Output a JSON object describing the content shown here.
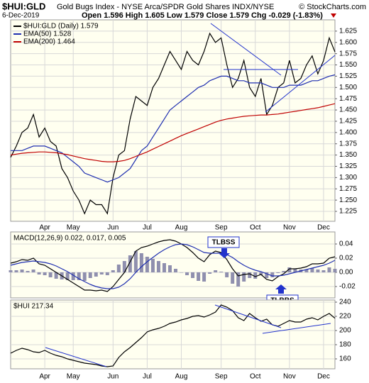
{
  "header": {
    "symbol": "$HUI:GLD",
    "name": "Gold Bugs Index - NYSE Arca/SPDR Gold Shares INDX/NYSE",
    "copyright": "© StockCharts.com",
    "date": "6-Dec-2019",
    "quote": "Open 1.596  High 1.605  Low 1.579  Close 1.579  Chg -0.029 (-1.83%)"
  },
  "chart_data": [
    {
      "type": "line",
      "categories": [
        null,
        null,
        null,
        null,
        null,
        null,
        "Apr",
        null,
        null,
        null,
        null,
        "May",
        null,
        null,
        null,
        null,
        null,
        null,
        "Jun",
        null,
        null,
        null,
        null,
        null,
        "Jul",
        null,
        null,
        null,
        null,
        null,
        "Aug",
        null,
        null,
        null,
        null,
        null,
        null,
        "Sep",
        null,
        null,
        null,
        null,
        null,
        "Oct",
        null,
        null,
        null,
        null,
        null,
        "Nov",
        null,
        null,
        null,
        null,
        null,
        "Dec",
        null,
        null
      ],
      "series": [
        {
          "name": "$HUI:GLD (Daily) 1.579",
          "color": "#000000",
          "values": [
            1.345,
            1.37,
            1.4,
            1.41,
            1.44,
            1.39,
            1.41,
            1.38,
            1.37,
            1.32,
            1.3,
            1.27,
            1.25,
            1.22,
            1.25,
            1.24,
            1.24,
            1.22,
            1.3,
            1.35,
            1.36,
            1.43,
            1.48,
            1.47,
            1.46,
            1.5,
            1.52,
            1.55,
            1.58,
            1.56,
            1.54,
            1.58,
            1.56,
            1.55,
            1.58,
            1.62,
            1.6,
            1.61,
            1.55,
            1.5,
            1.52,
            1.56,
            1.5,
            1.48,
            1.52,
            1.44,
            1.46,
            1.5,
            1.51,
            1.56,
            1.51,
            1.52,
            1.55,
            1.57,
            1.53,
            1.56,
            1.61,
            1.579
          ]
        },
        {
          "name": "EMA(50) 1.528",
          "color": "#1f2fb0",
          "values": [
            1.36,
            1.36,
            1.36,
            1.365,
            1.37,
            1.37,
            1.37,
            1.365,
            1.36,
            1.355,
            1.345,
            1.335,
            1.325,
            1.31,
            1.305,
            1.3,
            1.295,
            1.29,
            1.295,
            1.3,
            1.31,
            1.32,
            1.34,
            1.36,
            1.37,
            1.39,
            1.41,
            1.43,
            1.45,
            1.46,
            1.47,
            1.48,
            1.49,
            1.5,
            1.505,
            1.515,
            1.52,
            1.525,
            1.525,
            1.52,
            1.515,
            1.515,
            1.51,
            1.51,
            1.51,
            1.505,
            1.5,
            1.5,
            1.5,
            1.505,
            1.505,
            1.505,
            1.51,
            1.515,
            1.515,
            1.52,
            1.525,
            1.528
          ]
        },
        {
          "name": "EMA(200) 1.464",
          "color": "#c00000",
          "values": [
            1.35,
            1.352,
            1.354,
            1.355,
            1.356,
            1.357,
            1.357,
            1.356,
            1.355,
            1.353,
            1.351,
            1.348,
            1.345,
            1.342,
            1.34,
            1.338,
            1.336,
            1.335,
            1.335,
            1.336,
            1.338,
            1.342,
            1.347,
            1.352,
            1.357,
            1.363,
            1.369,
            1.375,
            1.381,
            1.387,
            1.393,
            1.398,
            1.403,
            1.408,
            1.413,
            1.418,
            1.423,
            1.427,
            1.43,
            1.432,
            1.434,
            1.436,
            1.437,
            1.438,
            1.439,
            1.439,
            1.44,
            1.441,
            1.443,
            1.445,
            1.447,
            1.449,
            1.451,
            1.453,
            1.455,
            1.458,
            1.461,
            1.464
          ]
        }
      ],
      "ylim": [
        1.203,
        1.65
      ],
      "yticks": [
        1.225,
        {
          "value": 1.25,
          "label": "1.250"
        },
        1.275,
        {
          "value": 1.3,
          "label": "1.300"
        },
        1.325,
        {
          "value": 1.35,
          "label": "1.350"
        },
        1.375,
        {
          "value": 1.4,
          "label": "1.400"
        },
        1.425,
        {
          "value": 1.45,
          "label": "1.450"
        },
        1.475,
        {
          "value": 1.5,
          "label": "1.500"
        },
        1.525,
        {
          "value": 1.55,
          "label": "1.550"
        },
        1.575,
        {
          "value": 1.6,
          "label": "1.600"
        },
        1.625
      ],
      "grid": true
    },
    {
      "type": "line",
      "label": "MACD(12,26,9) 0.022, 0.017, 0.005",
      "categories": [
        null,
        null,
        null,
        null,
        null,
        null,
        null,
        null,
        null,
        null,
        null,
        null,
        null,
        null,
        null,
        null,
        null,
        null,
        null,
        null,
        null,
        null,
        null,
        null,
        null,
        null,
        null,
        null,
        null,
        null,
        null,
        null,
        null,
        null,
        null,
        null,
        null,
        null,
        null,
        null,
        null,
        null,
        null,
        null,
        null,
        null,
        null,
        null,
        null,
        null,
        null,
        null,
        null,
        null,
        null,
        null,
        null,
        null
      ],
      "series": [
        {
          "type": "bar",
          "color": "#8f8fae",
          "values": [
            0.003,
            0.003,
            0.004,
            0.002,
            0.004,
            -0.003,
            -0.004,
            -0.007,
            -0.009,
            -0.01,
            -0.011,
            -0.011,
            -0.011,
            -0.012,
            -0.008,
            -0.006,
            -0.003,
            -0.004,
            0.003,
            0.011,
            0.016,
            0.024,
            0.03,
            0.027,
            0.022,
            0.019,
            0.016,
            0.013,
            0.01,
            0.005,
            0.0,
            -0.004,
            -0.008,
            -0.012,
            -0.013,
            -0.002,
            0.003,
            0.001,
            -0.007,
            -0.016,
            -0.02,
            -0.013,
            -0.008,
            -0.009,
            -0.004,
            -0.008,
            -0.007,
            -0.001,
            0.002,
            0.007,
            0.005,
            0.004,
            0.004,
            0.006,
            0.004,
            0.003,
            0.007,
            0.005
          ]
        },
        {
          "color": "#000000",
          "values": [
            0.013,
            0.015,
            0.018,
            0.017,
            0.02,
            0.012,
            0.01,
            0.005,
            0.0,
            -0.005,
            -0.01,
            -0.015,
            -0.02,
            -0.025,
            -0.025,
            -0.026,
            -0.025,
            -0.027,
            -0.02,
            -0.01,
            0.0,
            0.015,
            0.03,
            0.035,
            0.037,
            0.04,
            0.043,
            0.045,
            0.046,
            0.044,
            0.04,
            0.035,
            0.028,
            0.02,
            0.015,
            0.025,
            0.03,
            0.028,
            0.018,
            0.005,
            -0.005,
            -0.003,
            -0.002,
            -0.006,
            -0.003,
            -0.01,
            -0.012,
            -0.006,
            -0.002,
            0.005,
            0.005,
            0.006,
            0.008,
            0.012,
            0.012,
            0.013,
            0.02,
            0.022
          ]
        },
        {
          "color": "#1f2fb0",
          "values": [
            0.01,
            0.012,
            0.014,
            0.015,
            0.016,
            0.015,
            0.014,
            0.012,
            0.009,
            0.005,
            0.001,
            -0.004,
            -0.009,
            -0.013,
            -0.017,
            -0.02,
            -0.022,
            -0.023,
            -0.023,
            -0.021,
            -0.016,
            -0.009,
            0.0,
            0.008,
            0.015,
            0.021,
            0.027,
            0.032,
            0.036,
            0.039,
            0.04,
            0.039,
            0.036,
            0.032,
            0.028,
            0.027,
            0.027,
            0.027,
            0.025,
            0.021,
            0.015,
            0.01,
            0.006,
            0.003,
            0.001,
            -0.002,
            -0.005,
            -0.005,
            -0.004,
            -0.002,
            0.0,
            0.002,
            0.004,
            0.006,
            0.008,
            0.01,
            0.013,
            0.017
          ]
        }
      ],
      "ylim": [
        -0.036,
        0.057
      ],
      "yticks": [
        -0.02,
        {
          "value": 0,
          "label": "0.00"
        },
        0.02,
        0.04
      ],
      "grid": true,
      "annotations": [
        {
          "text": "TLBSS"
        },
        {
          "text": "TLBBS"
        }
      ]
    },
    {
      "type": "line",
      "label": "$HUI 217.34",
      "categories": [
        null,
        null,
        null,
        null,
        null,
        null,
        "Apr",
        null,
        null,
        null,
        null,
        "May",
        null,
        null,
        null,
        null,
        null,
        null,
        "Jun",
        null,
        null,
        null,
        null,
        null,
        "Jul",
        null,
        null,
        null,
        null,
        null,
        "Aug",
        null,
        null,
        null,
        null,
        null,
        null,
        "Sep",
        null,
        null,
        null,
        null,
        null,
        "Oct",
        null,
        null,
        null,
        null,
        null,
        "Nov",
        null,
        null,
        null,
        null,
        null,
        "Dec",
        null,
        null
      ],
      "series": [
        {
          "color": "#000000",
          "values": [
            168,
            172,
            175,
            173,
            170,
            169,
            172,
            168,
            165,
            163,
            160,
            158,
            156,
            154,
            153,
            152,
            150,
            149,
            150,
            162,
            170,
            176,
            183,
            190,
            198,
            201,
            203,
            206,
            210,
            212,
            215,
            217,
            220,
            221,
            219,
            222,
            226,
            236,
            233,
            228,
            218,
            214,
            224,
            218,
            213,
            216,
            208,
            206,
            210,
            214,
            212,
            212,
            216,
            218,
            215,
            220,
            224,
            217.34
          ]
        }
      ],
      "ylim": [
        146,
        243
      ],
      "yticks": [
        160,
        180,
        200,
        220,
        240
      ],
      "grid": true
    }
  ]
}
